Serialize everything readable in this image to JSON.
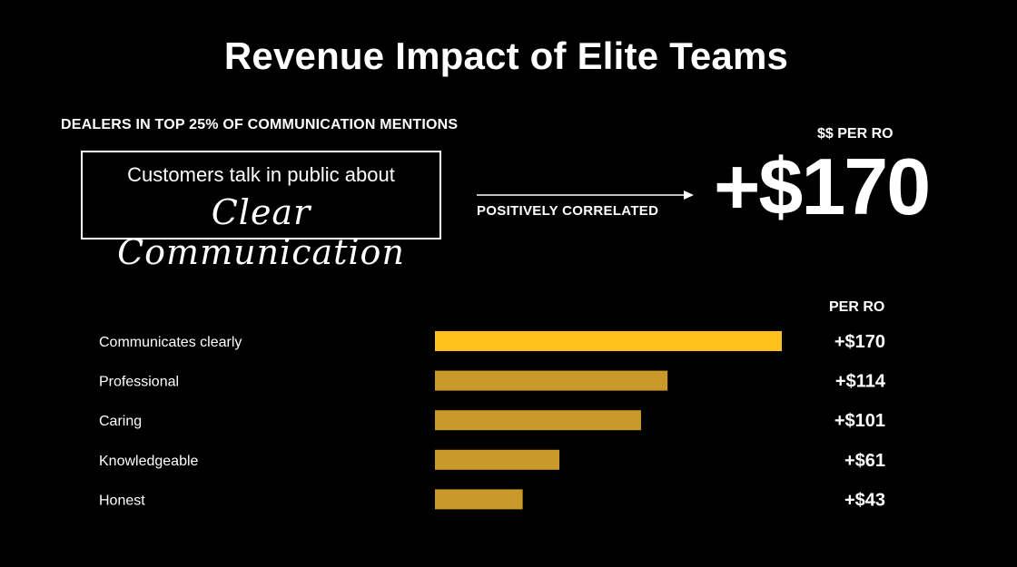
{
  "title": "Revenue Impact of Elite Teams",
  "subtitle": "DEALERS IN TOP 25% OF COMMUNICATION MENTIONS",
  "callout": {
    "line1": "Customers talk in public about",
    "line2": "Clear Communication"
  },
  "correlation_label": "POSITIVELY CORRELATED",
  "headline": {
    "label": "$$ PER RO",
    "value": "+$170"
  },
  "chart_data": {
    "type": "bar",
    "orientation": "horizontal",
    "value_header": "PER RO",
    "categories": [
      "Communicates clearly",
      "Professional",
      "Caring",
      "Knowledgeable",
      "Honest"
    ],
    "values": [
      170,
      114,
      101,
      61,
      43
    ],
    "value_labels": [
      "+$170",
      "+$114",
      "+$101",
      "+$61",
      "+$43"
    ],
    "xlim": [
      0,
      170
    ],
    "colors": {
      "highlight": "#FFC21C",
      "default": "#C99A2A"
    },
    "grid": false
  }
}
